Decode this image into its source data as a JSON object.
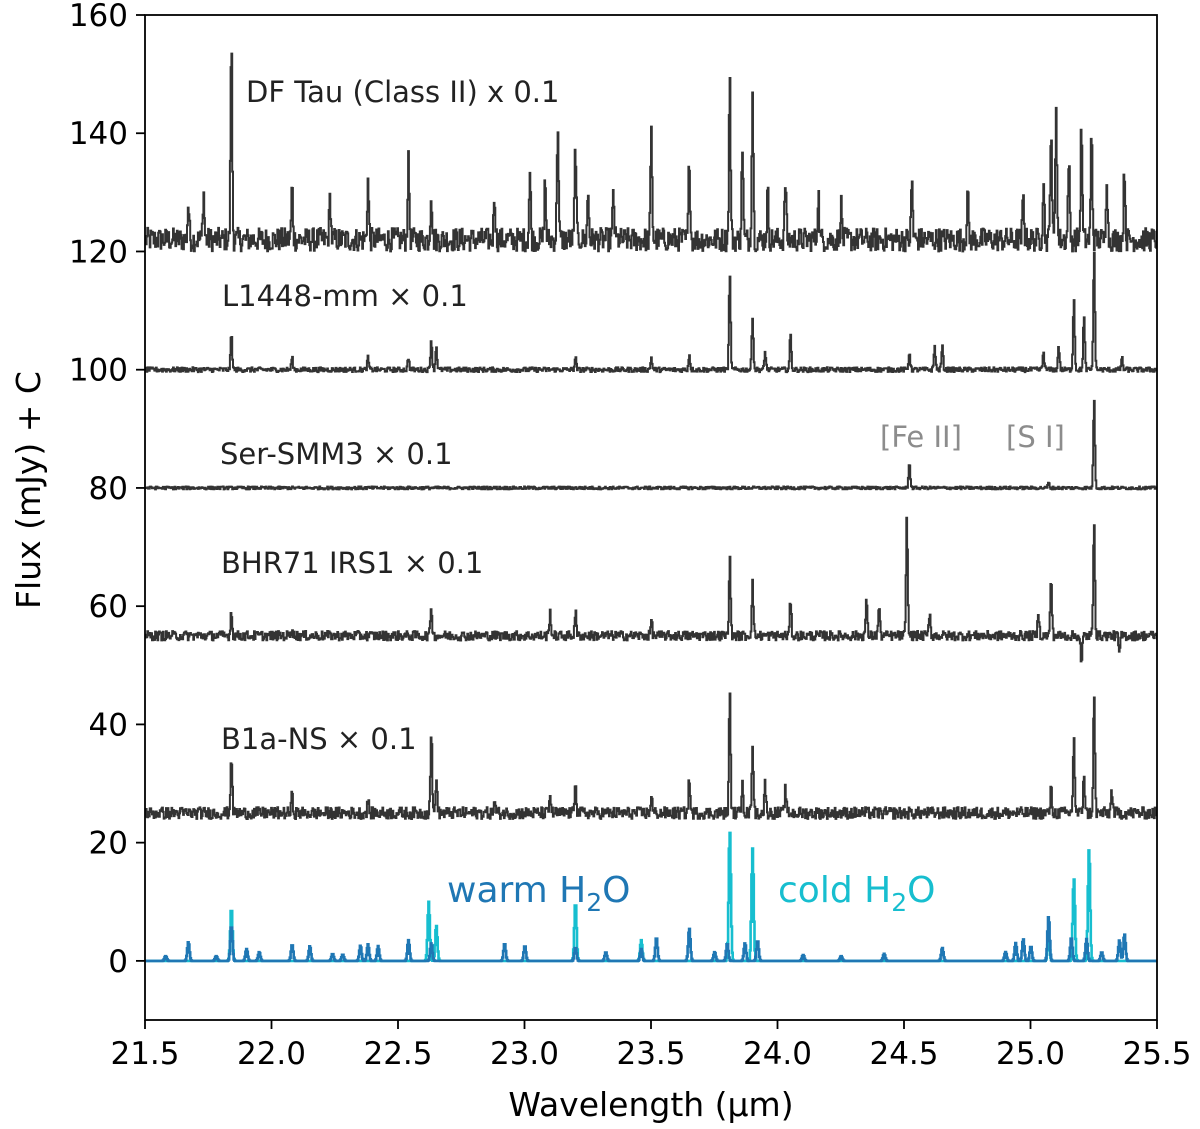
{
  "chart_data": {
    "type": "line",
    "xlabel": "Wavelength (μm)",
    "ylabel": "Flux (mJy) + C",
    "xlim": [
      21.5,
      25.5
    ],
    "ylim": [
      -10,
      160
    ],
    "xticks": [
      "21.5",
      "22.0",
      "22.5",
      "23.0",
      "23.5",
      "24.0",
      "24.5",
      "25.0",
      "25.5"
    ],
    "yticks": [
      "0",
      "20",
      "40",
      "60",
      "80",
      "100",
      "120",
      "140",
      "160"
    ],
    "grid": false,
    "series": [
      {
        "name": "DF Tau (Class II) x 0.1",
        "color": "#333333",
        "baseline": 122,
        "noise": 2.0,
        "peaks": [
          [
            21.84,
            34
          ],
          [
            21.67,
            6
          ],
          [
            21.73,
            8
          ],
          [
            22.08,
            9
          ],
          [
            22.23,
            7
          ],
          [
            22.38,
            10
          ],
          [
            22.54,
            13
          ],
          [
            22.63,
            8
          ],
          [
            22.88,
            8
          ],
          [
            23.02,
            11
          ],
          [
            23.08,
            10
          ],
          [
            23.13,
            20
          ],
          [
            23.2,
            16
          ],
          [
            23.25,
            8
          ],
          [
            23.35,
            8
          ],
          [
            23.5,
            18
          ],
          [
            23.65,
            14
          ],
          [
            23.81,
            27
          ],
          [
            23.86,
            16
          ],
          [
            23.9,
            25
          ],
          [
            23.96,
            8
          ],
          [
            24.03,
            10
          ],
          [
            24.16,
            8
          ],
          [
            24.25,
            6
          ],
          [
            24.53,
            10
          ],
          [
            24.75,
            8
          ],
          [
            24.97,
            7
          ],
          [
            25.05,
            10
          ],
          [
            25.08,
            20
          ],
          [
            25.1,
            23
          ],
          [
            25.15,
            14
          ],
          [
            25.2,
            19
          ],
          [
            25.24,
            18
          ],
          [
            25.3,
            11
          ],
          [
            25.37,
            12
          ]
        ]
      },
      {
        "name": "L1448-mm × 0.1",
        "color": "#333333",
        "baseline": 100,
        "noise": 0.4,
        "peaks": [
          [
            21.84,
            6
          ],
          [
            22.08,
            2
          ],
          [
            22.38,
            2
          ],
          [
            22.54,
            2
          ],
          [
            22.63,
            5
          ],
          [
            22.65,
            4
          ],
          [
            23.2,
            2
          ],
          [
            23.5,
            2
          ],
          [
            23.65,
            2.5
          ],
          [
            23.81,
            16
          ],
          [
            23.9,
            9
          ],
          [
            23.95,
            3
          ],
          [
            24.05,
            6
          ],
          [
            24.52,
            3
          ],
          [
            24.62,
            4
          ],
          [
            24.65,
            4
          ],
          [
            25.05,
            3
          ],
          [
            25.11,
            4
          ],
          [
            25.17,
            12
          ],
          [
            25.21,
            9
          ],
          [
            25.25,
            20
          ],
          [
            25.36,
            2
          ]
        ]
      },
      {
        "name": "Ser-SMM3 × 0.1",
        "color": "#333333",
        "baseline": 80,
        "noise": 0.25,
        "peaks": [
          [
            24.52,
            4.5
          ],
          [
            25.25,
            15
          ],
          [
            25.07,
            0.8
          ]
        ]
      },
      {
        "name": "BHR71 IRS1 × 0.1",
        "color": "#333333",
        "baseline": 55,
        "noise": 0.8,
        "peaks": [
          [
            21.84,
            4
          ],
          [
            22.08,
            1.5
          ],
          [
            22.63,
            5
          ],
          [
            23.1,
            4
          ],
          [
            23.2,
            4
          ],
          [
            23.5,
            2.5
          ],
          [
            23.81,
            13
          ],
          [
            23.9,
            9
          ],
          [
            24.05,
            6
          ],
          [
            24.35,
            6
          ],
          [
            24.4,
            5
          ],
          [
            24.51,
            20
          ],
          [
            24.6,
            4
          ],
          [
            25.03,
            4
          ],
          [
            25.08,
            10
          ],
          [
            25.25,
            20
          ],
          [
            25.2,
            -5
          ],
          [
            25.35,
            -3
          ]
        ]
      },
      {
        "name": "B1a-NS × 0.1",
        "color": "#333333",
        "baseline": 25,
        "noise": 1.0,
        "peaks": [
          [
            21.84,
            10
          ],
          [
            22.08,
            3
          ],
          [
            22.38,
            2
          ],
          [
            22.63,
            14
          ],
          [
            22.65,
            6
          ],
          [
            22.88,
            2
          ],
          [
            23.1,
            3
          ],
          [
            23.2,
            6
          ],
          [
            23.5,
            3
          ],
          [
            23.65,
            6
          ],
          [
            23.81,
            20
          ],
          [
            23.86,
            6
          ],
          [
            23.9,
            12
          ],
          [
            23.95,
            5
          ],
          [
            24.03,
            4
          ],
          [
            25.08,
            4
          ],
          [
            25.17,
            13
          ],
          [
            25.21,
            7
          ],
          [
            25.25,
            20
          ],
          [
            25.32,
            4
          ]
        ]
      },
      {
        "name": "cold H2O",
        "color": "#17becf",
        "baseline": 0,
        "noise": 0,
        "peaks": [
          [
            21.84,
            9
          ],
          [
            22.62,
            10
          ],
          [
            22.65,
            6
          ],
          [
            23.2,
            10
          ],
          [
            23.46,
            3.5
          ],
          [
            23.81,
            22
          ],
          [
            23.9,
            19
          ],
          [
            25.17,
            14
          ],
          [
            25.23,
            19
          ],
          [
            25.07,
            4
          ]
        ]
      },
      {
        "name": "warm H2O",
        "color": "#1f77b4",
        "baseline": 0,
        "noise": 0,
        "peaks": [
          [
            21.58,
            0.8
          ],
          [
            21.67,
            3.2
          ],
          [
            21.78,
            0.8
          ],
          [
            21.84,
            6
          ],
          [
            21.9,
            2
          ],
          [
            21.95,
            1.5
          ],
          [
            22.08,
            2.8
          ],
          [
            22.15,
            2.5
          ],
          [
            22.24,
            1.2
          ],
          [
            22.28,
            1.1
          ],
          [
            22.35,
            2.6
          ],
          [
            22.38,
            2.8
          ],
          [
            22.42,
            2.5
          ],
          [
            22.54,
            3.5
          ],
          [
            22.63,
            3
          ],
          [
            22.92,
            3
          ],
          [
            23.0,
            2.6
          ],
          [
            23.2,
            2.3
          ],
          [
            23.32,
            1.5
          ],
          [
            23.46,
            2
          ],
          [
            23.52,
            4
          ],
          [
            23.65,
            5.5
          ],
          [
            23.75,
            1.5
          ],
          [
            23.8,
            3
          ],
          [
            23.87,
            3
          ],
          [
            23.92,
            3.5
          ],
          [
            24.1,
            1
          ],
          [
            24.25,
            0.8
          ],
          [
            24.42,
            1.2
          ],
          [
            24.65,
            2.2
          ],
          [
            24.9,
            1.5
          ],
          [
            24.94,
            3
          ],
          [
            24.97,
            3.7
          ],
          [
            25.0,
            2.5
          ],
          [
            25.07,
            7.5
          ],
          [
            25.16,
            4
          ],
          [
            25.22,
            3.7
          ],
          [
            25.28,
            1.5
          ],
          [
            25.35,
            3.5
          ],
          [
            25.37,
            4.5
          ]
        ]
      }
    ],
    "annotations": [
      "[Fe II]",
      "[S I]"
    ],
    "model_labels": {
      "warm_prefix": "warm H",
      "cold_prefix": "cold H",
      "sub": "2",
      "suffix": "O",
      "warm_color": "#1f77b4",
      "cold_color": "#17becf"
    }
  }
}
